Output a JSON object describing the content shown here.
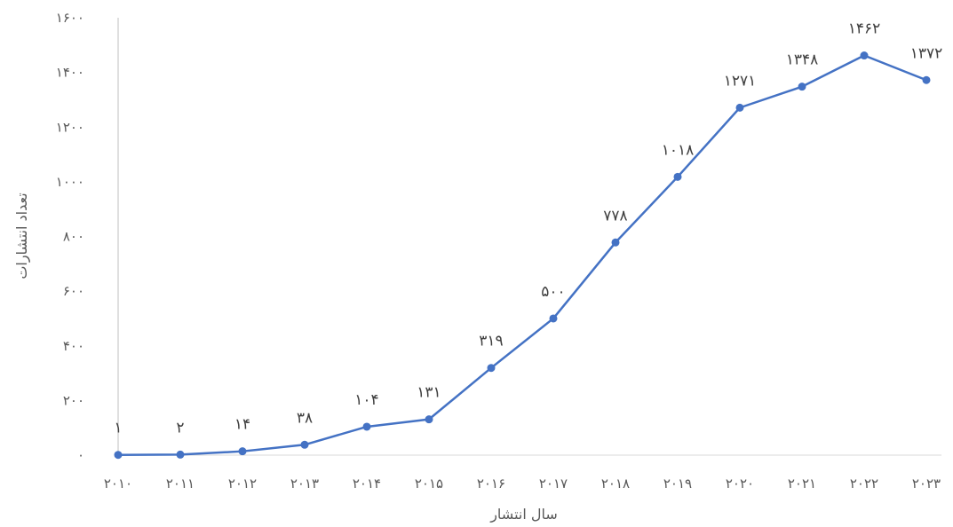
{
  "chart_data": {
    "type": "line",
    "x_title": "سال انتشار",
    "y_title": "تعداد انتشارات",
    "y_ticks": [
      "۰",
      "۲۰۰",
      "۴۰۰",
      "۶۰۰",
      "۸۰۰",
      "۱۰۰۰",
      "۱۲۰۰",
      "۱۴۰۰",
      "۱۶۰۰"
    ],
    "ylim": [
      0,
      1600
    ],
    "y_step": 200,
    "grid": false,
    "categories": [
      "۲۰۱۰",
      "۲۰۱۱",
      "۲۰۱۲",
      "۲۰۱۳",
      "۲۰۱۴",
      "۲۰۱۵",
      "۲۰۱۶",
      "۲۰۱۷",
      "۲۰۱۸",
      "۲۰۱۹",
      "۲۰۲۰",
      "۲۰۲۱",
      "۲۰۲۲",
      "۲۰۲۳"
    ],
    "series": [
      {
        "color": "#4472C4",
        "values": [
          1,
          2,
          14,
          38,
          104,
          131,
          319,
          500,
          778,
          1018,
          1271,
          1348,
          1462,
          1372
        ],
        "labels": [
          "۱",
          "۲",
          "۱۴",
          "۳۸",
          "۱۰۴",
          "۱۳۱",
          "۳۱۹",
          "۵۰۰",
          "۷۷۸",
          "۱۰۱۸",
          "۱۲۷۱",
          "۱۳۴۸",
          "۱۴۶۲",
          "۱۳۷۲"
        ]
      }
    ]
  }
}
